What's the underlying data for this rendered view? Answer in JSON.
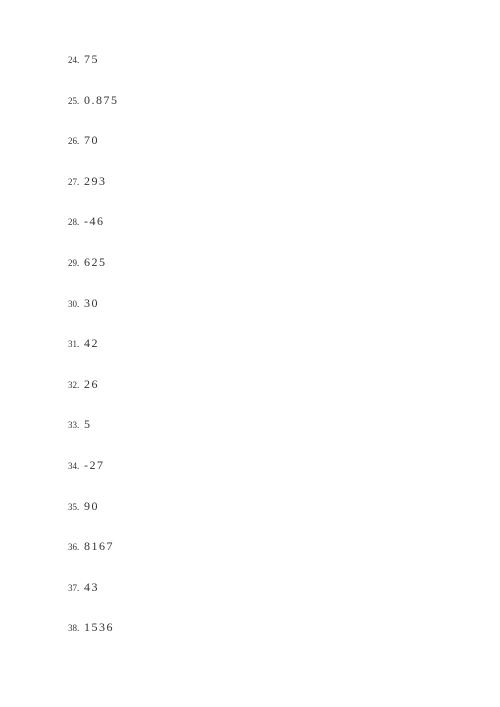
{
  "text_color": "#333333",
  "background_color": "#ffffff",
  "number_fontsize": 9,
  "value_fontsize": 12,
  "items": [
    {
      "n": "24.",
      "v": "75"
    },
    {
      "n": "25.",
      "v": "0.875"
    },
    {
      "n": "26.",
      "v": "70"
    },
    {
      "n": "27.",
      "v": "293"
    },
    {
      "n": "28.",
      "v": "-46"
    },
    {
      "n": "29.",
      "v": "625"
    },
    {
      "n": "30.",
      "v": "30"
    },
    {
      "n": "31.",
      "v": "42"
    },
    {
      "n": "32.",
      "v": "26"
    },
    {
      "n": "33.",
      "v": "5"
    },
    {
      "n": "34.",
      "v": "-27"
    },
    {
      "n": "35.",
      "v": "90"
    },
    {
      "n": "36.",
      "v": "8167"
    },
    {
      "n": "37.",
      "v": "43"
    },
    {
      "n": "38.",
      "v": "1536"
    }
  ]
}
